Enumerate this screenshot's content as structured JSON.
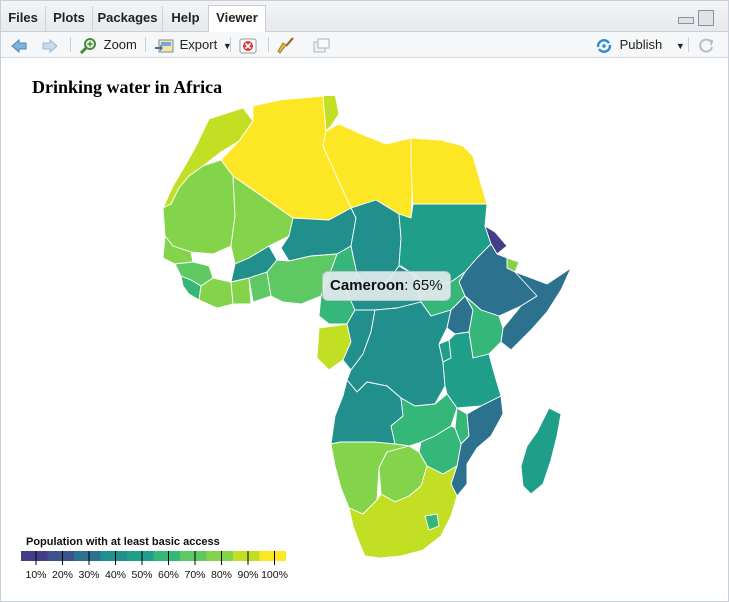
{
  "tabs": [
    {
      "label": "Files",
      "active": false
    },
    {
      "label": "Plots",
      "active": false
    },
    {
      "label": "Packages",
      "active": false
    },
    {
      "label": "Help",
      "active": false
    },
    {
      "label": "Viewer",
      "active": true
    }
  ],
  "toolbar": {
    "zoom_label": "Zoom",
    "export_label": "Export",
    "publish_label": "Publish",
    "icons": [
      "back-arrow-icon",
      "forward-arrow-icon",
      "zoom-icon",
      "export-icon",
      "remove-icon",
      "broom-icon",
      "popout-icon",
      "publish-icon",
      "refresh-icon"
    ]
  },
  "viewer": {
    "title": "Drinking water in Africa",
    "tooltip": {
      "country": "Cameroon",
      "value": ": 65%"
    },
    "legend": {
      "title": "Population with at least basic access",
      "labels": [
        "10%",
        "20%",
        "30%",
        "40%",
        "50%",
        "60%",
        "70%",
        "80%",
        "90%",
        "100%"
      ],
      "colors": [
        "#433e85",
        "#3b528b",
        "#2c728e",
        "#21908d",
        "#1f9e89",
        "#35b779",
        "#5ec962",
        "#84d44b",
        "#c2df23",
        "#fde725"
      ]
    }
  }
}
